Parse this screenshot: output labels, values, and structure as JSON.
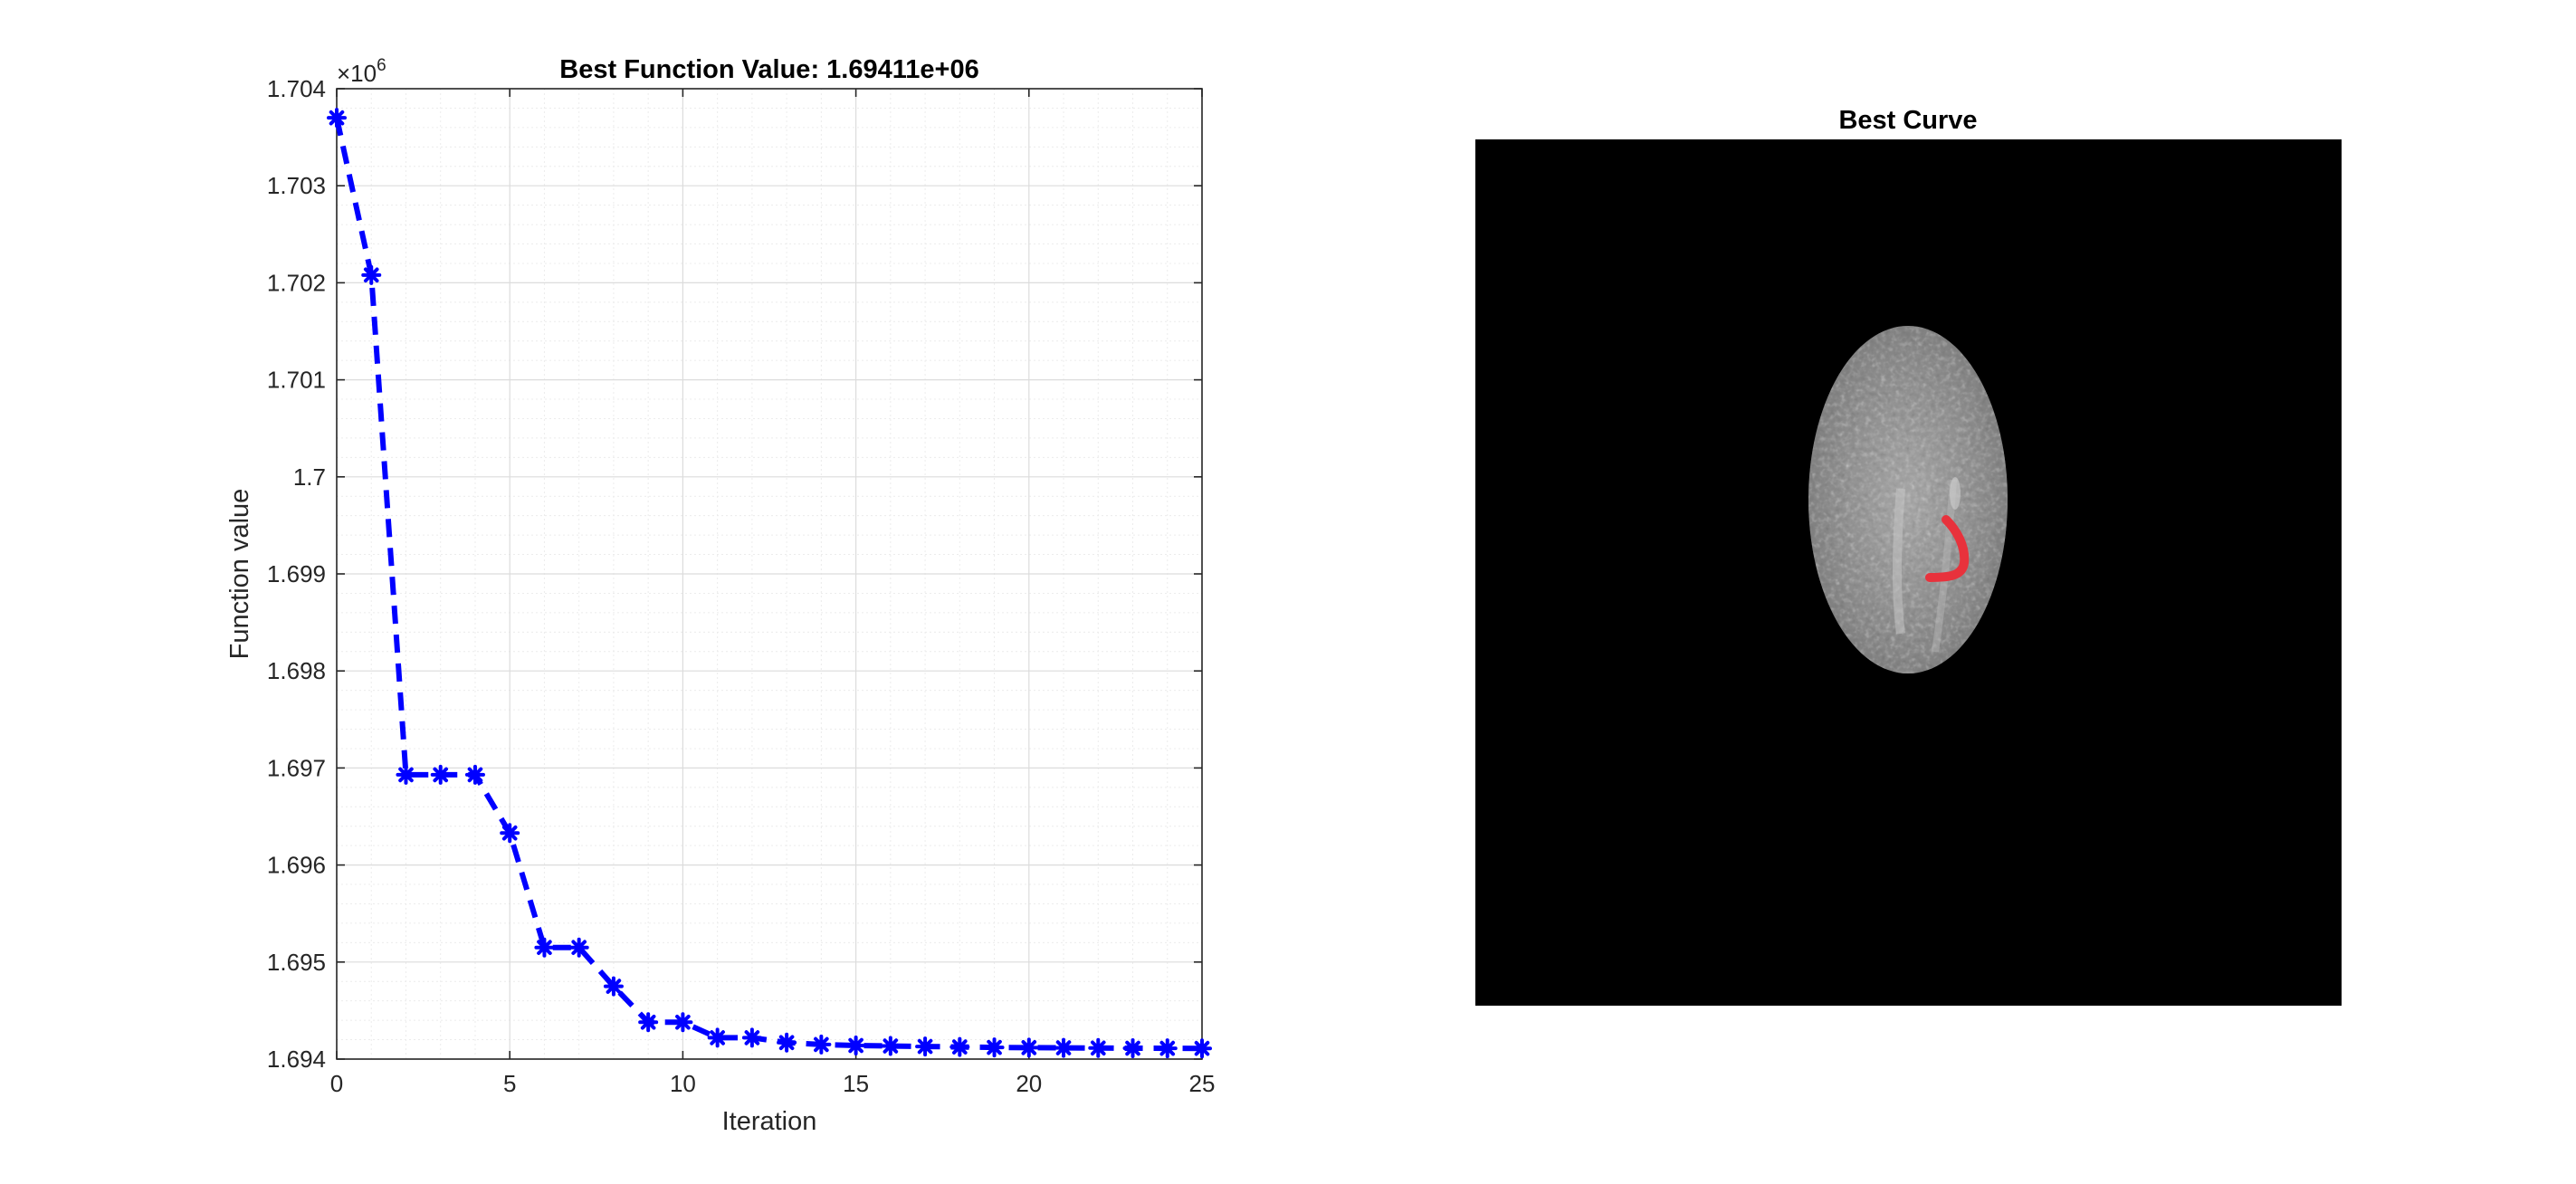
{
  "chart_data": [
    {
      "type": "line",
      "title": "Best Function Value: 1.69411e+06",
      "xlabel": "Iteration",
      "ylabel": "Function value",
      "ylabel_exponent_base": "×10",
      "ylabel_exponent": "6",
      "xlim": [
        0,
        25
      ],
      "ylim": [
        1694000,
        1704000
      ],
      "xticks": [
        0,
        5,
        10,
        15,
        20,
        25
      ],
      "xtick_labels": [
        "0",
        "5",
        "10",
        "15",
        "20",
        "25"
      ],
      "yticks": [
        1694000,
        1695000,
        1696000,
        1697000,
        1698000,
        1699000,
        1700000,
        1701000,
        1702000,
        1703000,
        1704000
      ],
      "ytick_labels": [
        "1.694",
        "1.695",
        "1.696",
        "1.697",
        "1.698",
        "1.699",
        "1.7",
        "1.701",
        "1.702",
        "1.703",
        "1.704"
      ],
      "grid": true,
      "minor_grid": true,
      "series": [
        {
          "line_style": "dashed",
          "marker": "asterisk",
          "color": "#0000ff",
          "x": [
            0,
            1,
            2,
            3,
            4,
            5,
            6,
            7,
            8,
            9,
            10,
            11,
            12,
            13,
            14,
            15,
            16,
            17,
            18,
            19,
            20,
            21,
            22,
            23,
            24,
            25
          ],
          "y": [
            1703700,
            1702080,
            1696930,
            1696930,
            1696930,
            1696330,
            1695150,
            1695150,
            1694750,
            1694380,
            1694380,
            1694220,
            1694220,
            1694170,
            1694150,
            1694140,
            1694135,
            1694130,
            1694125,
            1694120,
            1694118,
            1694116,
            1694114,
            1694112,
            1694111,
            1694110
          ]
        }
      ]
    },
    {
      "type": "image",
      "title": "Best Curve",
      "background_color": "#000000",
      "curve_color": "#e8323c"
    }
  ]
}
